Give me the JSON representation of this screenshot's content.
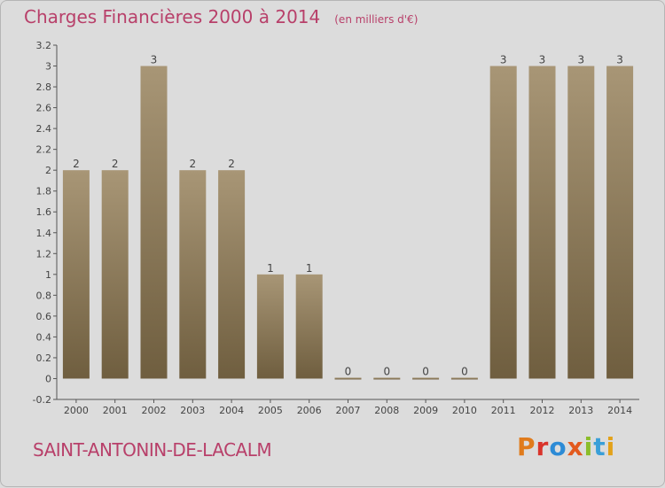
{
  "header": {
    "title": "Charges Financières 2000 à 2014",
    "unit": "(en milliers d'€)"
  },
  "footer": {
    "commune": "SAINT-ANTONIN-DE-LACALM",
    "brand": {
      "letters": [
        "P",
        "r",
        "o",
        "x",
        "i",
        "t",
        "i"
      ],
      "colors": [
        "#e07b1c",
        "#d9342b",
        "#2d8bd6",
        "#e35a1e",
        "#8bbd2a",
        "#3a9fd8",
        "#e3a21a"
      ]
    },
    "logo_label": "Proxiti"
  },
  "colors": {
    "bar_top": "#a89676",
    "bar_bottom": "#6f5e3f",
    "accent": "#b8406a"
  },
  "chart_data": {
    "type": "bar",
    "categories": [
      "2000",
      "2001",
      "2002",
      "2003",
      "2004",
      "2005",
      "2006",
      "2007",
      "2008",
      "2009",
      "2010",
      "2011",
      "2012",
      "2013",
      "2014"
    ],
    "values": [
      2,
      2,
      3,
      2,
      2,
      1,
      1,
      0,
      0,
      0,
      0,
      3,
      3,
      3,
      3
    ],
    "data_labels": [
      "2",
      "2",
      "3",
      "2",
      "2",
      "1",
      "1",
      "0",
      "0",
      "0",
      "0",
      "3",
      "3",
      "3",
      "3"
    ],
    "yticks": [
      "-0.2",
      "0",
      "0.2",
      "0.4",
      "0.6",
      "0.8",
      "1",
      "1.2",
      "1.4",
      "1.6",
      "1.8",
      "2",
      "2.2",
      "2.4",
      "2.6",
      "2.8",
      "3",
      "3.2"
    ],
    "ylim": [
      -0.2,
      3.2
    ],
    "grid": false,
    "title": "Charges Financières 2000 à 2014"
  }
}
